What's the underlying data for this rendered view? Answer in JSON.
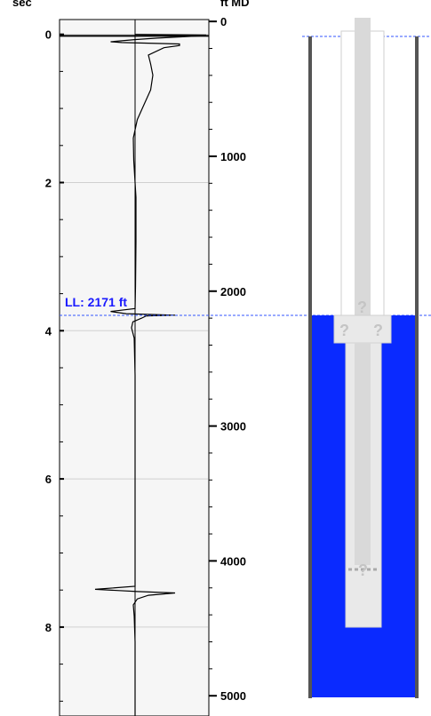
{
  "chart_data": {
    "type": "line",
    "left_axis": {
      "label": "sec",
      "range": [
        -0.2,
        9.2
      ],
      "ticks": [
        0,
        2,
        4,
        6,
        8
      ],
      "tick_labels": [
        "0",
        "2",
        "4",
        "6",
        "8"
      ]
    },
    "right_axis": {
      "label": "ft MD",
      "range": [
        -14,
        5150
      ],
      "ticks": [
        0,
        1000,
        2000,
        3000,
        4000,
        5000
      ],
      "tick_labels": [
        "0",
        "1000",
        "2000",
        "3000",
        "4000",
        "5000"
      ]
    },
    "grid": true,
    "liquid_level": {
      "label": "LL: 2171 ft",
      "depth_ft": 2171,
      "time_sec": 3.75
    },
    "series": [
      {
        "points": [
          [
            0,
            0
          ],
          [
            0.01,
            1.6
          ],
          [
            0.02,
            1.5
          ],
          [
            0.05,
            0.5
          ],
          [
            0.07,
            0.02
          ],
          [
            0.1,
            -0.55
          ],
          [
            0.11,
            -0.3
          ],
          [
            0.13,
            1.0
          ],
          [
            0.15,
            1.0
          ],
          [
            0.18,
            0.65
          ],
          [
            0.28,
            0.3
          ],
          [
            0.4,
            0.35
          ],
          [
            0.55,
            0.4
          ],
          [
            0.75,
            0.35
          ],
          [
            0.95,
            0.2
          ],
          [
            1.15,
            0.05
          ],
          [
            1.4,
            -0.04
          ],
          [
            1.7,
            -0.03
          ],
          [
            2.2,
            0.02
          ],
          [
            2.8,
            0.02
          ],
          [
            3.4,
            0.01
          ],
          [
            3.7,
            0.0
          ],
          [
            3.74,
            -0.55
          ],
          [
            3.77,
            -0.2
          ],
          [
            3.79,
            0.9
          ],
          [
            3.8,
            0.25
          ],
          [
            3.83,
            0.15
          ],
          [
            3.88,
            -0.05
          ],
          [
            3.96,
            -0.08
          ],
          [
            4.1,
            -0.02
          ],
          [
            4.6,
            0.0
          ],
          [
            5.4,
            0.0
          ],
          [
            6.2,
            0.0
          ],
          [
            7.0,
            0.0
          ],
          [
            7.45,
            0.0
          ],
          [
            7.49,
            -0.9
          ],
          [
            7.52,
            0.05
          ],
          [
            7.54,
            0.9
          ],
          [
            7.57,
            0.3
          ],
          [
            7.62,
            0.05
          ],
          [
            7.7,
            -0.04
          ],
          [
            7.85,
            -0.02
          ],
          [
            8.2,
            0.0
          ],
          [
            8.8,
            0.0
          ],
          [
            9.2,
            0.0
          ]
        ]
      }
    ]
  },
  "wellbore": {
    "unknown_marks": [
      "?",
      "?",
      "?",
      "?"
    ],
    "colors": {
      "fluid": "#0a2aff",
      "casing": "#555555",
      "tubing": "#d9d9d9",
      "liquid_level_line": "#3355ff"
    }
  }
}
